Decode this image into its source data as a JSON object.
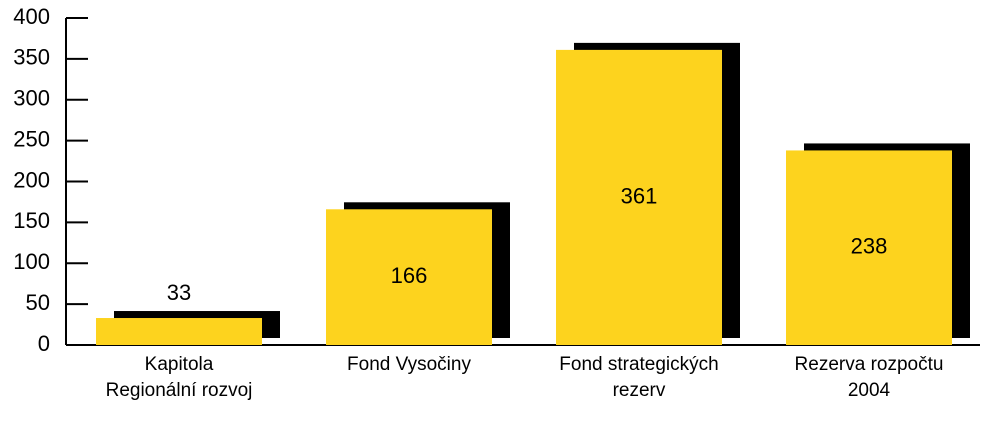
{
  "chart_data": {
    "type": "bar",
    "categories": [
      "Kapitola\nRegionální rozvoj",
      "Fond Vysočiny",
      "Fond strategických\nrezerv",
      "Rezerva rozpočtu\n2004"
    ],
    "values": [
      33,
      166,
      361,
      238
    ],
    "color": "#fdd31e",
    "shadow_color": "#000000",
    "ylim": [
      0,
      400
    ],
    "yticks": [
      0,
      50,
      100,
      150,
      200,
      250,
      300,
      350,
      400
    ]
  }
}
